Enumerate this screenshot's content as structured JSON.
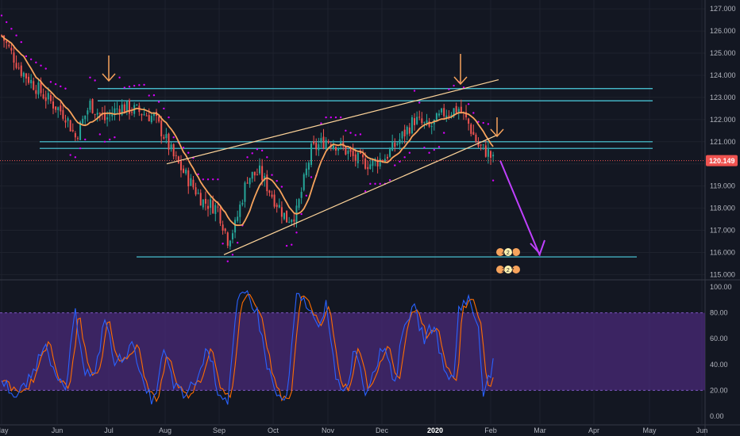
{
  "chart_data": [
    {
      "type": "candlestick",
      "title": "",
      "ylim": [
        114.8,
        127.4
      ],
      "yticks": [
        "127.000",
        "126.000",
        "125.000",
        "124.000",
        "123.000",
        "122.000",
        "121.000",
        "120.000",
        "119.000",
        "118.000",
        "117.000",
        "116.000",
        "115.000"
      ],
      "xticks": [
        "May",
        "Jun",
        "Jul",
        "Aug",
        "Sep",
        "Oct",
        "Nov",
        "Dec",
        "2020",
        "Feb",
        "Mar",
        "Apr",
        "May",
        "Jun"
      ],
      "last_price": "120.149",
      "colors": {
        "up": "#26a69a",
        "down": "#ef5350",
        "ma": "#f7a35c",
        "channel": "#ffd59a",
        "level": "#4dd0e1",
        "sar": "#d500f9",
        "arrow": "#f7a35c",
        "projection": "#c040ff",
        "price_line": "#ef5350"
      },
      "series": [
        {
          "name": "",
          "kind": "moving-average"
        },
        {
          "name": "",
          "kind": "parabolic-sar"
        }
      ],
      "horizontal_levels": [
        123.4,
        122.85,
        121.0,
        120.7,
        115.8
      ],
      "channel": {
        "upper": [
          [
            120.0,
            123.8
          ]
        ],
        "lower": [
          [
            115.9,
            121.3
          ]
        ]
      },
      "projection_target": 115.8,
      "annotations": [
        {
          "type": "arrow-down",
          "icon": "arrow-down-icon"
        },
        {
          "type": "arrow-down",
          "icon": "arrow-down-icon"
        },
        {
          "type": "arrow-down",
          "icon": "arrow-down-icon"
        }
      ],
      "badges": {
        "top": "4 2 1",
        "bottom": "2 2 7"
      },
      "grid": true
    },
    {
      "type": "line",
      "title": "",
      "ylim": [
        0,
        100
      ],
      "yticks": [
        "100.00",
        "80.00",
        "60.00",
        "40.00",
        "20.00",
        "0.00"
      ],
      "band": [
        20,
        80
      ],
      "colors": {
        "k": "#2962ff",
        "d": "#ff6d00",
        "band": "#4a2a78"
      },
      "series": [
        {
          "name": "",
          "color": "#2962ff"
        },
        {
          "name": "",
          "color": "#ff6d00"
        }
      ]
    }
  ]
}
